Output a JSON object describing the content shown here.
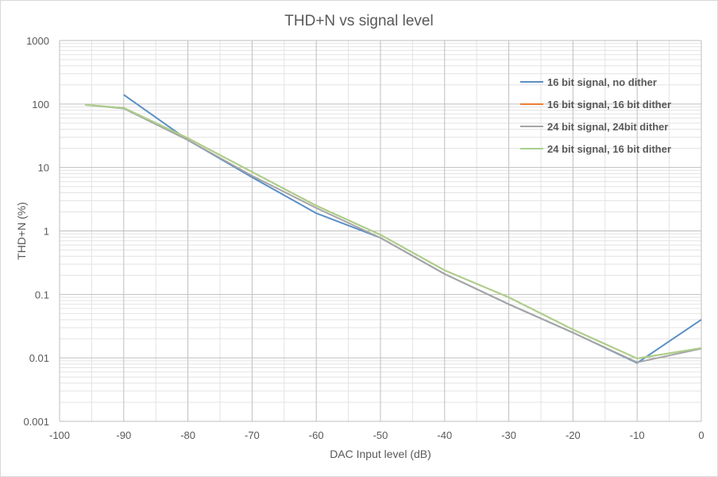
{
  "chart_data": {
    "type": "line",
    "title": "THD+N vs signal level",
    "xlabel": "DAC Input level (dB)",
    "ylabel": "THD+N (%)",
    "xlim": [
      -100,
      0
    ],
    "ylim": [
      0.001,
      1000
    ],
    "yscale": "log",
    "grid": true,
    "legend_position": "top-right",
    "x_ticks": [
      "-100",
      "-90",
      "-80",
      "-70",
      "-60",
      "-50",
      "-40",
      "-30",
      "-20",
      "-10",
      "0"
    ],
    "y_ticks": [
      "1000",
      "100",
      "10",
      "1",
      "0.1",
      "0.01",
      "0.001"
    ],
    "series": [
      {
        "name": "16 bit signal, no dither",
        "color": "#5b8fc4",
        "x": [
          -90,
          -80,
          -70,
          -60,
          -50,
          -40,
          -30,
          -20,
          -10,
          0
        ],
        "y": [
          140,
          27,
          7.0,
          1.9,
          0.78,
          0.21,
          0.07,
          0.025,
          0.0083,
          0.04
        ]
      },
      {
        "name": "16 bit signal, 16 bit dither",
        "color": "#ed7d31",
        "x": [
          -96,
          -90,
          -80,
          -70,
          -60,
          -50,
          -40,
          -30,
          -20,
          -10,
          0
        ],
        "y": [
          97,
          87,
          29,
          8.5,
          2.5,
          0.87,
          0.24,
          0.09,
          0.028,
          0.0098,
          0.0143
        ]
      },
      {
        "name": "24 bit signal, 24bit dither",
        "color": "#a5a5a5",
        "x": [
          -96,
          -90,
          -80,
          -70,
          -60,
          -50,
          -40,
          -30,
          -20,
          -10,
          0
        ],
        "y": [
          97,
          85,
          27,
          7.4,
          2.3,
          0.78,
          0.21,
          0.07,
          0.025,
          0.0085,
          0.014
        ]
      },
      {
        "name": "24 bit signal, 16 bit dither",
        "color": "#a9d18e",
        "x": [
          -96,
          -90,
          -80,
          -70,
          -60,
          -50,
          -40,
          -30,
          -20,
          -10,
          0
        ],
        "y": [
          97,
          87,
          29,
          8.5,
          2.5,
          0.87,
          0.24,
          0.09,
          0.028,
          0.0098,
          0.0143
        ]
      }
    ]
  }
}
